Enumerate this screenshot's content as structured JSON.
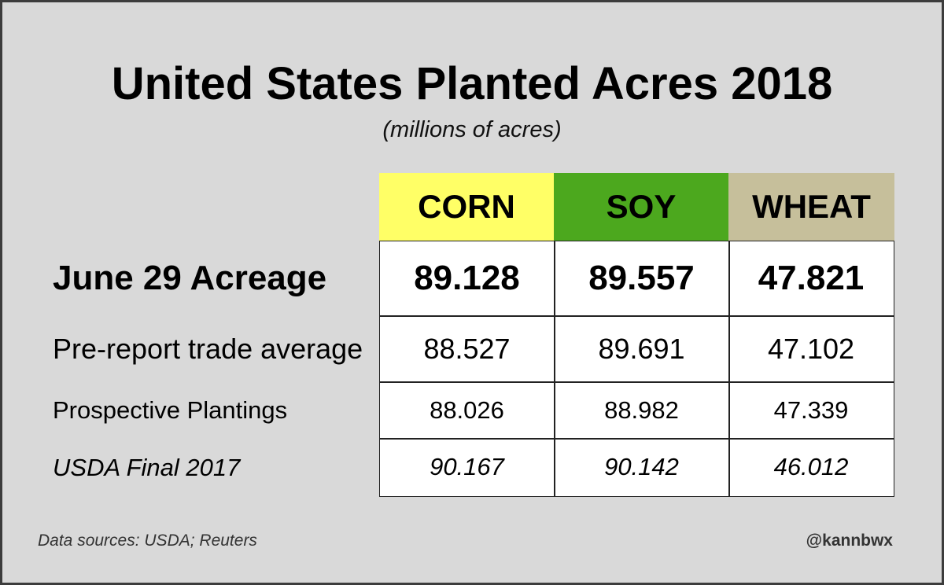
{
  "chart_data": {
    "type": "table",
    "title": "United States Planted Acres 2018",
    "subtitle": "(millions of acres)",
    "columns": [
      {
        "label": "CORN",
        "color": "#ffff66"
      },
      {
        "label": "SOY",
        "color": "#4ca81e"
      },
      {
        "label": "WHEAT",
        "color": "#c6bf9b"
      }
    ],
    "rows": [
      {
        "label": "June 29 Acreage",
        "values": [
          "89.128",
          "89.557",
          "47.821"
        ]
      },
      {
        "label": "Pre-report trade average",
        "values": [
          "88.527",
          "89.691",
          "47.102"
        ]
      },
      {
        "label": "Prospective Plantings",
        "values": [
          "88.026",
          "88.982",
          "47.339"
        ]
      },
      {
        "label": "USDA Final 2017",
        "values": [
          "90.167",
          "90.142",
          "46.012"
        ]
      }
    ]
  },
  "footer": {
    "source": "Data sources: USDA; Reuters",
    "handle": "@kannbwx"
  },
  "colors": {
    "background": "#d9d9d9",
    "border": "#3c3c3c"
  }
}
